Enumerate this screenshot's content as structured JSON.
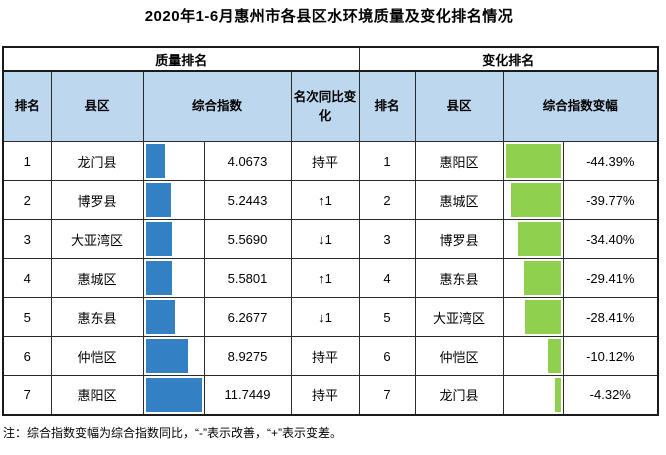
{
  "title": "2020年1-6月惠州市各县区水环境质量及变化排名情况",
  "note": "注：综合指数变幅为综合指数同比，“-”表示改善，“+”表示变差。",
  "colors": {
    "header_bg": "#BDD7EE",
    "quality_bar": "#3380C4",
    "change_bar": "#8FD14F",
    "border": "#2B2B2B"
  },
  "quality": {
    "section_title": "质量排名",
    "headers": {
      "rank": "排名",
      "district": "县区",
      "index": "综合指数",
      "rank_change": "名次同比变化"
    },
    "max_index": 11.7449,
    "rows": [
      {
        "rank": "1",
        "district": "龙门县",
        "index": "4.0673",
        "index_value": 4.0673,
        "change": "持平"
      },
      {
        "rank": "2",
        "district": "博罗县",
        "index": "5.2443",
        "index_value": 5.2443,
        "change": "↑1"
      },
      {
        "rank": "3",
        "district": "大亚湾区",
        "index": "5.5690",
        "index_value": 5.569,
        "change": "↓1"
      },
      {
        "rank": "4",
        "district": "惠城区",
        "index": "5.5801",
        "index_value": 5.5801,
        "change": "↑1"
      },
      {
        "rank": "5",
        "district": "惠东县",
        "index": "6.2677",
        "index_value": 6.2677,
        "change": "↓1"
      },
      {
        "rank": "6",
        "district": "仲恺区",
        "index": "8.9275",
        "index_value": 8.9275,
        "change": "持平"
      },
      {
        "rank": "7",
        "district": "惠阳区",
        "index": "11.7449",
        "index_value": 11.7449,
        "change": "持平"
      }
    ]
  },
  "change": {
    "section_title": "变化排名",
    "headers": {
      "rank": "排名",
      "district": "县区",
      "delta": "综合指数变幅"
    },
    "max_abs_delta": 44.39,
    "rows": [
      {
        "rank": "1",
        "district": "惠阳区",
        "delta": "-44.39%",
        "delta_value": -44.39
      },
      {
        "rank": "2",
        "district": "惠城区",
        "delta": "-39.77%",
        "delta_value": -39.77
      },
      {
        "rank": "3",
        "district": "博罗县",
        "delta": "-34.40%",
        "delta_value": -34.4
      },
      {
        "rank": "4",
        "district": "惠东县",
        "delta": "-29.41%",
        "delta_value": -29.41
      },
      {
        "rank": "5",
        "district": "大亚湾区",
        "delta": "-28.41%",
        "delta_value": -28.41
      },
      {
        "rank": "6",
        "district": "仲恺区",
        "delta": "-10.12%",
        "delta_value": -10.12
      },
      {
        "rank": "7",
        "district": "龙门县",
        "delta": "-4.32%",
        "delta_value": -4.32
      }
    ]
  },
  "chart_data": [
    {
      "type": "bar",
      "title": "质量排名 - 综合指数",
      "orientation": "horizontal",
      "categories": [
        "龙门县",
        "博罗县",
        "大亚湾区",
        "惠城区",
        "惠东县",
        "仲恺区",
        "惠阳区"
      ],
      "values": [
        4.0673,
        5.2443,
        5.569,
        5.5801,
        6.2677,
        8.9275,
        11.7449
      ],
      "annotations": [
        "持平",
        "↑1",
        "↓1",
        "↑1",
        "↓1",
        "持平",
        "持平"
      ],
      "xlabel": "综合指数",
      "ylabel": "县区",
      "xlim": [
        0,
        11.7449
      ],
      "bar_color": "#3380C4",
      "grid": false,
      "legend": "none"
    },
    {
      "type": "bar",
      "title": "变化排名 - 综合指数变幅",
      "orientation": "horizontal",
      "categories": [
        "惠阳区",
        "惠城区",
        "博罗县",
        "惠东县",
        "大亚湾区",
        "仲恺区",
        "龙门县"
      ],
      "values": [
        -44.39,
        -39.77,
        -34.4,
        -29.41,
        -28.41,
        -10.12,
        -4.32
      ],
      "unit": "%",
      "xlabel": "综合指数变幅(%)",
      "ylabel": "县区",
      "xlim": [
        -44.39,
        0
      ],
      "bar_color": "#8FD14F",
      "grid": false,
      "legend": "none"
    }
  ]
}
